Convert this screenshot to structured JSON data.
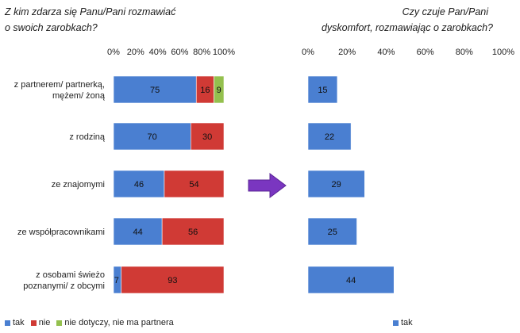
{
  "chart_data": [
    {
      "type": "bar",
      "orientation": "horizontal",
      "stacked": true,
      "title": "Z kim zdarza się Panu/Pani rozmawiać o swoich zarobkach?",
      "title_lines": [
        "Z kim zdarza się Panu/Pani rozmawiać",
        "o swoich zarobkach?"
      ],
      "categories": [
        [
          "z partnerem/ partnerką,",
          "mężem/ żoną"
        ],
        [
          "z rodziną"
        ],
        [
          "ze znajomymi"
        ],
        [
          "ze współpracownikami"
        ],
        [
          "z osobami świeżo",
          "poznanymi/ z obcymi"
        ]
      ],
      "series": [
        {
          "name": "tak",
          "color": "#4a7fd1",
          "values": [
            75,
            70,
            46,
            44,
            7
          ]
        },
        {
          "name": "nie",
          "color": "#d03a35",
          "values": [
            16,
            30,
            54,
            56,
            93
          ]
        },
        {
          "name": "nie dotyczy, nie ma partnera",
          "color": "#94c04e",
          "values": [
            9,
            null,
            null,
            null,
            null
          ]
        }
      ],
      "xlim": [
        0,
        100
      ],
      "xticks": [
        "0%",
        "20%",
        "40%",
        "60%",
        "80%",
        "100%"
      ],
      "legend_position": "bottom-left"
    },
    {
      "type": "bar",
      "orientation": "horizontal",
      "title": "Czy czuje Pan/Pani dyskomfort, rozmawiając o zarobkach?",
      "title_lines": [
        "Czy czuje Pan/Pani",
        "dyskomfort, rozmawiając o zarobkach?"
      ],
      "series": [
        {
          "name": "tak",
          "color": "#4a7fd1",
          "values": [
            15,
            22,
            29,
            25,
            44
          ]
        }
      ],
      "xlim": [
        0,
        100
      ],
      "xticks": [
        "0%",
        "20%",
        "40%",
        "60%",
        "80%",
        "100%"
      ],
      "legend_position": "bottom"
    }
  ],
  "arrow_color": "#7a36c0"
}
